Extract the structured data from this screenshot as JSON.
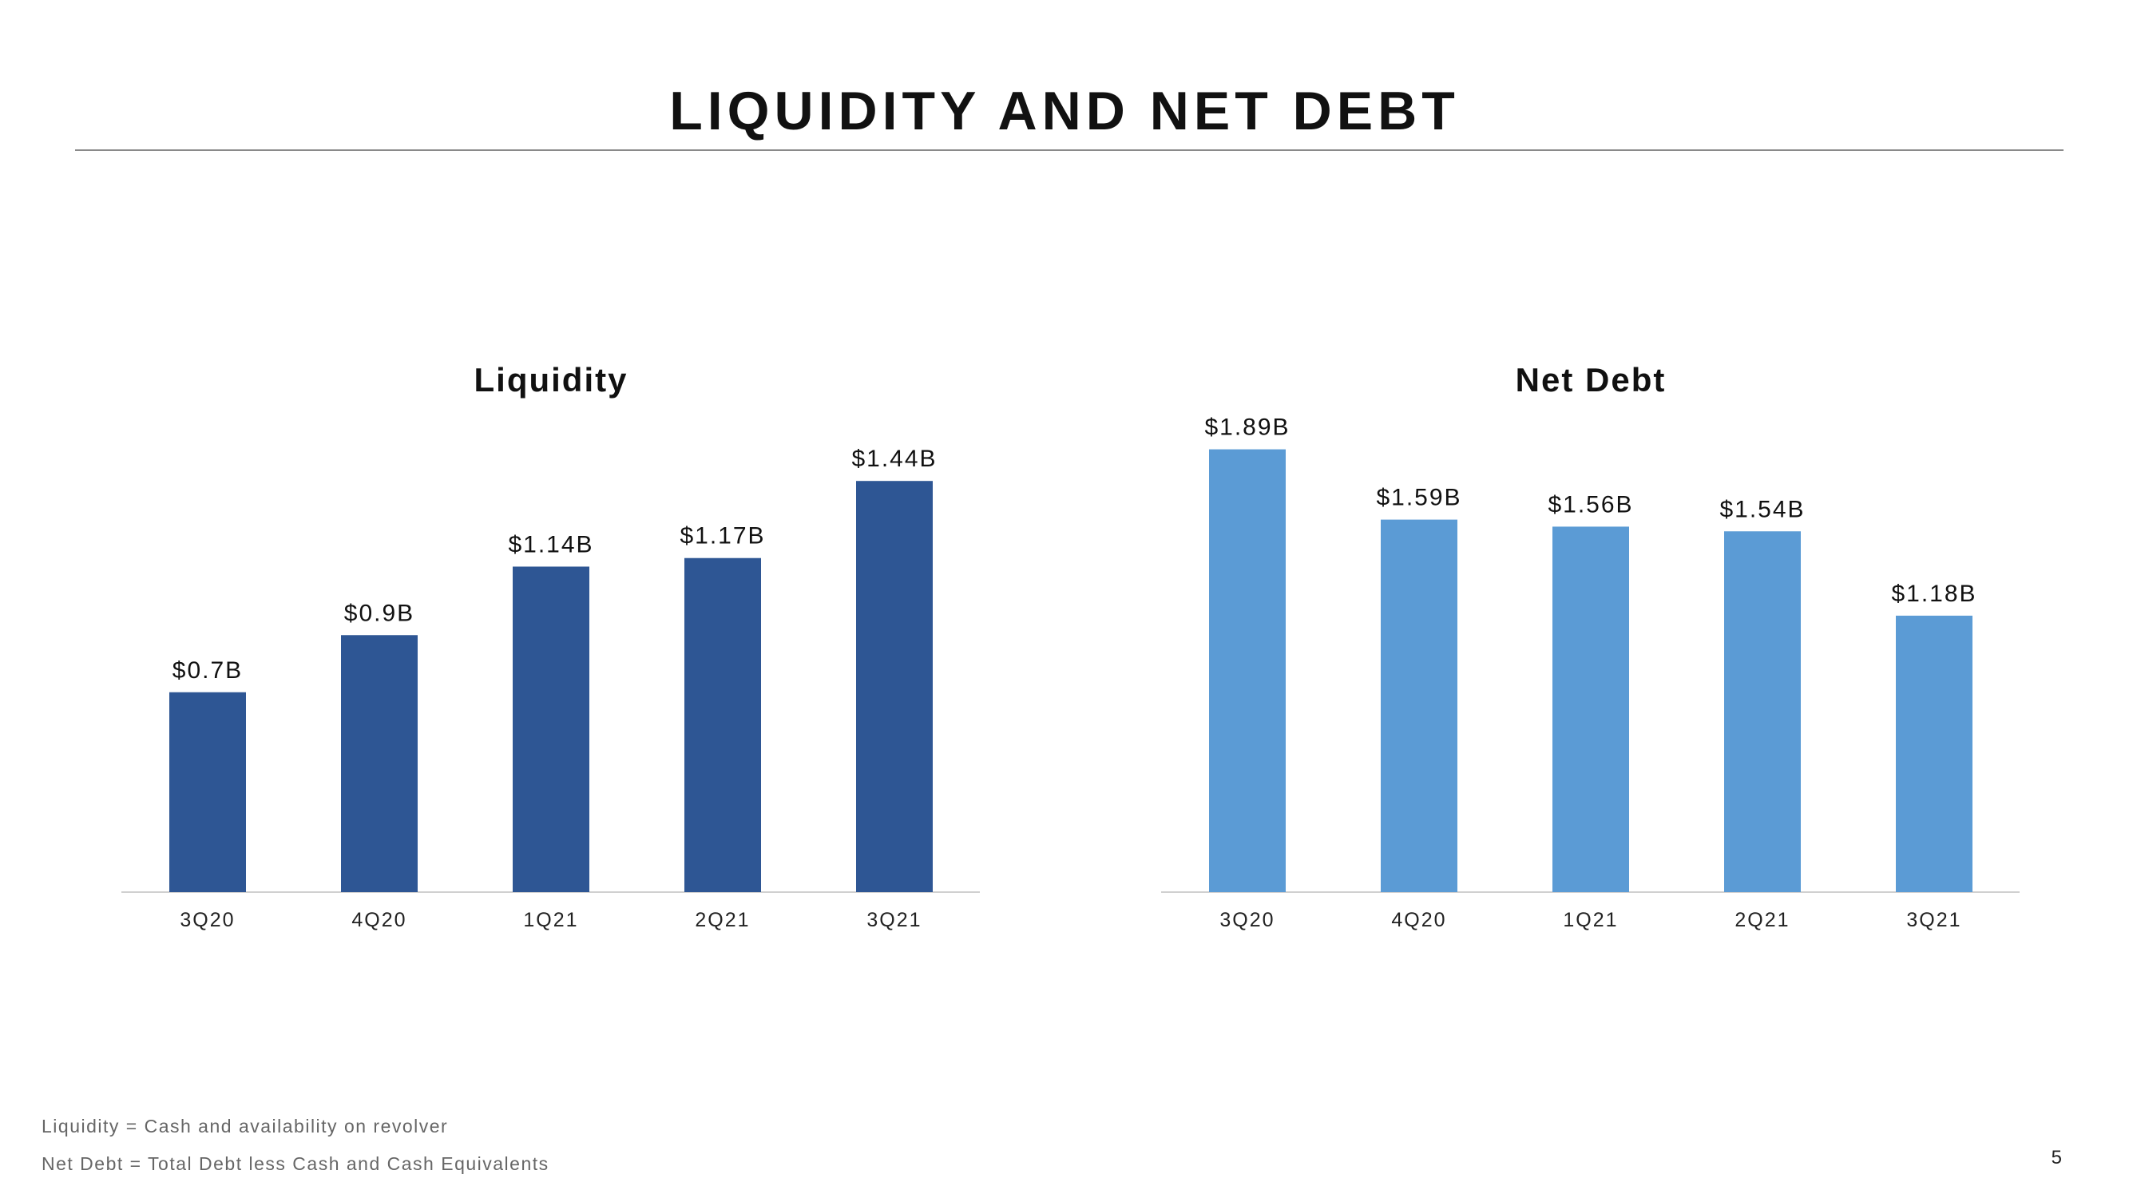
{
  "slide": {
    "title": "LIQUIDITY AND NET DEBT",
    "page_number": "5",
    "footnotes": [
      "Liquidity = Cash and availability on revolver",
      "Net Debt = Total Debt less Cash and Cash Equivalents"
    ]
  },
  "chart_data": [
    {
      "type": "bar",
      "title": "Liquidity",
      "categories": [
        "3Q20",
        "4Q20",
        "1Q21",
        "2Q21",
        "3Q21"
      ],
      "values": [
        0.7,
        0.9,
        1.14,
        1.17,
        1.44
      ],
      "data_labels": [
        "$0.7B",
        "$0.9B",
        "$1.14B",
        "$1.17B",
        "$1.44B"
      ],
      "unit": "$B",
      "color": "#2e5694",
      "ylim": [
        0,
        1.6
      ],
      "grid": false,
      "legend": "none"
    },
    {
      "type": "bar",
      "title": "Net Debt",
      "categories": [
        "3Q20",
        "4Q20",
        "1Q21",
        "2Q21",
        "3Q21"
      ],
      "values": [
        1.89,
        1.59,
        1.56,
        1.54,
        1.18
      ],
      "data_labels": [
        "$1.89B",
        "$1.59B",
        "$1.56B",
        "$1.54B",
        "$1.18B"
      ],
      "unit": "$B",
      "color": "#5b9bd5",
      "ylim": [
        0,
        1.95
      ],
      "grid": false,
      "legend": "none"
    }
  ]
}
